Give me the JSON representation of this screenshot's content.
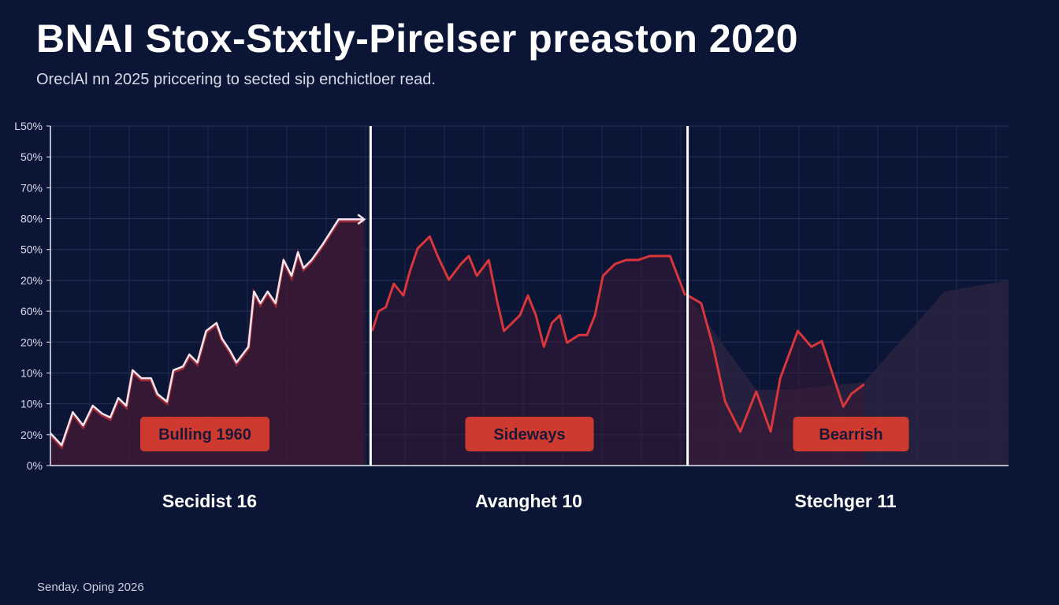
{
  "chart_data": {
    "type": "line",
    "title": "BNAI Stox-Stxtly-Pirelser preaston 2020",
    "subtitle": "OreclAl nn 2025 priccering to sected sip enchictloer read.",
    "footer": "Senday. Oping 2026",
    "xlim": [
      0,
      120
    ],
    "ylim": [
      0,
      11
    ],
    "grid": true,
    "yticks": [
      "0%",
      "20%",
      "10%",
      "10%",
      "20%",
      "60%",
      "20%",
      "50%",
      "80%",
      "70%",
      "50%",
      "1̶50%"
    ],
    "ytick_labels": [
      "0%",
      "20%",
      "10%",
      "10%",
      "20%",
      "60%",
      "20%",
      "50%",
      "80%",
      "70%",
      "50%",
      "L50%"
    ],
    "dividers": [
      40.1,
      79.8
    ],
    "colors": {
      "bull": "#f2e6ee",
      "bull_edge": "#c9303a",
      "side": "#d8363a",
      "bear": "#d8363a",
      "badge": "#cf3a30",
      "fill": "#3a1a34",
      "background": "#0b1535"
    },
    "series": [
      {
        "name": "Bulling 1960",
        "segment_label": "Secidist 16",
        "color": "#f2e6ee",
        "x": [
          0,
          1.4,
          2.8,
          4.1,
          5.3,
          6.5,
          7.5,
          8.5,
          9.5,
          10.3,
          11.4,
          12.6,
          13.4,
          14.6,
          15.4,
          16.6,
          17.4,
          18.4,
          19.5,
          20.8,
          21.5,
          22.5,
          23.3,
          24.8,
          25.5,
          26.3,
          27.2,
          28.2,
          29.2,
          30.2,
          31.0,
          31.7,
          32.7,
          34.1,
          36.1,
          39.3
        ],
        "y": [
          1.05,
          0.66,
          1.73,
          1.3,
          1.94,
          1.68,
          1.56,
          2.19,
          1.94,
          3.09,
          2.83,
          2.83,
          2.32,
          2.07,
          3.09,
          3.21,
          3.6,
          3.34,
          4.36,
          4.62,
          4.11,
          3.72,
          3.34,
          3.85,
          5.64,
          5.26,
          5.64,
          5.26,
          6.66,
          6.15,
          6.91,
          6.4,
          6.66,
          7.17,
          7.98,
          7.98
        ]
      },
      {
        "name": "Sideways",
        "segment_label": "Avanghet 10",
        "color": "#d8363a",
        "x": [
          40.3,
          41.1,
          42.0,
          43.0,
          44.2,
          45.0,
          46.0,
          47.5,
          48.5,
          49.9,
          51.4,
          52.4,
          53.4,
          54.9,
          55.9,
          56.8,
          58.8,
          59.8,
          60.8,
          61.8,
          62.8,
          63.8,
          64.7,
          66.2,
          67.2,
          68.2,
          69.2,
          70.7,
          72.1,
          73.6,
          75.1,
          77.6,
          79.5
        ],
        "y": [
          4.36,
          5.0,
          5.13,
          5.89,
          5.51,
          6.28,
          7.04,
          7.42,
          6.79,
          6.02,
          6.53,
          6.79,
          6.15,
          6.66,
          5.38,
          4.36,
          4.87,
          5.51,
          4.87,
          3.85,
          4.62,
          4.87,
          3.98,
          4.23,
          4.23,
          4.87,
          6.15,
          6.53,
          6.66,
          6.66,
          6.79,
          6.79,
          5.51
        ]
      },
      {
        "name": "Bearrish",
        "segment_label": "Stechger 11",
        "color": "#d8363a",
        "x": [
          79.8,
          81.5,
          83.0,
          84.5,
          86.4,
          88.4,
          90.2,
          91.4,
          93.6,
          95.3,
          96.6,
          97.8,
          99.3,
          100.3,
          101.9
        ],
        "y": [
          5.51,
          5.26,
          3.85,
          2.07,
          1.1,
          2.4,
          1.1,
          2.83,
          4.36,
          3.85,
          4.03,
          3.09,
          1.91,
          2.32,
          2.63
        ]
      }
    ],
    "shadow": {
      "x": [
        79.8,
        88.4,
        92.4,
        101.9,
        112.0,
        120
      ],
      "y": [
        5.51,
        2.45,
        2.45,
        2.7,
        5.64,
        6.0
      ]
    }
  }
}
